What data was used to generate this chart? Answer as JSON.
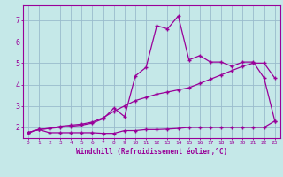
{
  "xlabel": "Windchill (Refroidissement éolien,°C)",
  "bg_color": "#c5e8e8",
  "line_color": "#990099",
  "grid_color": "#99bbcc",
  "xlim": [
    -0.5,
    23.5
  ],
  "ylim": [
    1.5,
    7.7
  ],
  "xticks": [
    0,
    1,
    2,
    3,
    4,
    5,
    6,
    7,
    8,
    9,
    10,
    11,
    12,
    13,
    14,
    15,
    16,
    17,
    18,
    19,
    20,
    21,
    22,
    23
  ],
  "yticks": [
    2,
    3,
    4,
    5,
    6,
    7
  ],
  "line1_x": [
    0,
    1,
    2,
    3,
    4,
    5,
    6,
    7,
    8,
    9,
    10,
    11,
    12,
    13,
    14,
    15,
    16,
    17,
    18,
    19,
    20,
    21,
    22,
    23
  ],
  "line1_y": [
    1.75,
    1.9,
    1.75,
    1.75,
    1.75,
    1.75,
    1.75,
    1.72,
    1.72,
    1.85,
    1.85,
    1.9,
    1.9,
    1.92,
    1.95,
    2.0,
    2.0,
    2.0,
    2.0,
    2.0,
    2.0,
    2.0,
    2.0,
    2.3
  ],
  "line2_x": [
    0,
    1,
    2,
    3,
    4,
    5,
    6,
    7,
    8,
    9,
    10,
    11,
    12,
    13,
    14,
    15,
    16,
    17,
    18,
    19,
    20,
    21,
    22,
    23
  ],
  "line2_y": [
    1.75,
    1.9,
    1.95,
    2.0,
    2.05,
    2.1,
    2.2,
    2.4,
    2.9,
    2.5,
    4.4,
    4.8,
    6.75,
    6.6,
    7.2,
    5.15,
    5.35,
    5.05,
    5.05,
    4.85,
    5.05,
    5.05,
    4.3,
    2.3
  ],
  "line3_x": [
    0,
    1,
    2,
    3,
    4,
    5,
    6,
    7,
    8,
    9,
    10,
    11,
    12,
    13,
    14,
    15,
    16,
    17,
    18,
    19,
    20,
    21,
    22,
    23
  ],
  "line3_y": [
    1.75,
    1.9,
    1.95,
    2.05,
    2.1,
    2.15,
    2.25,
    2.45,
    2.75,
    3.0,
    3.25,
    3.4,
    3.55,
    3.65,
    3.75,
    3.85,
    4.05,
    4.25,
    4.45,
    4.65,
    4.85,
    5.0,
    5.0,
    4.3
  ],
  "marker": "+",
  "markersize": 3,
  "linewidth": 0.9
}
